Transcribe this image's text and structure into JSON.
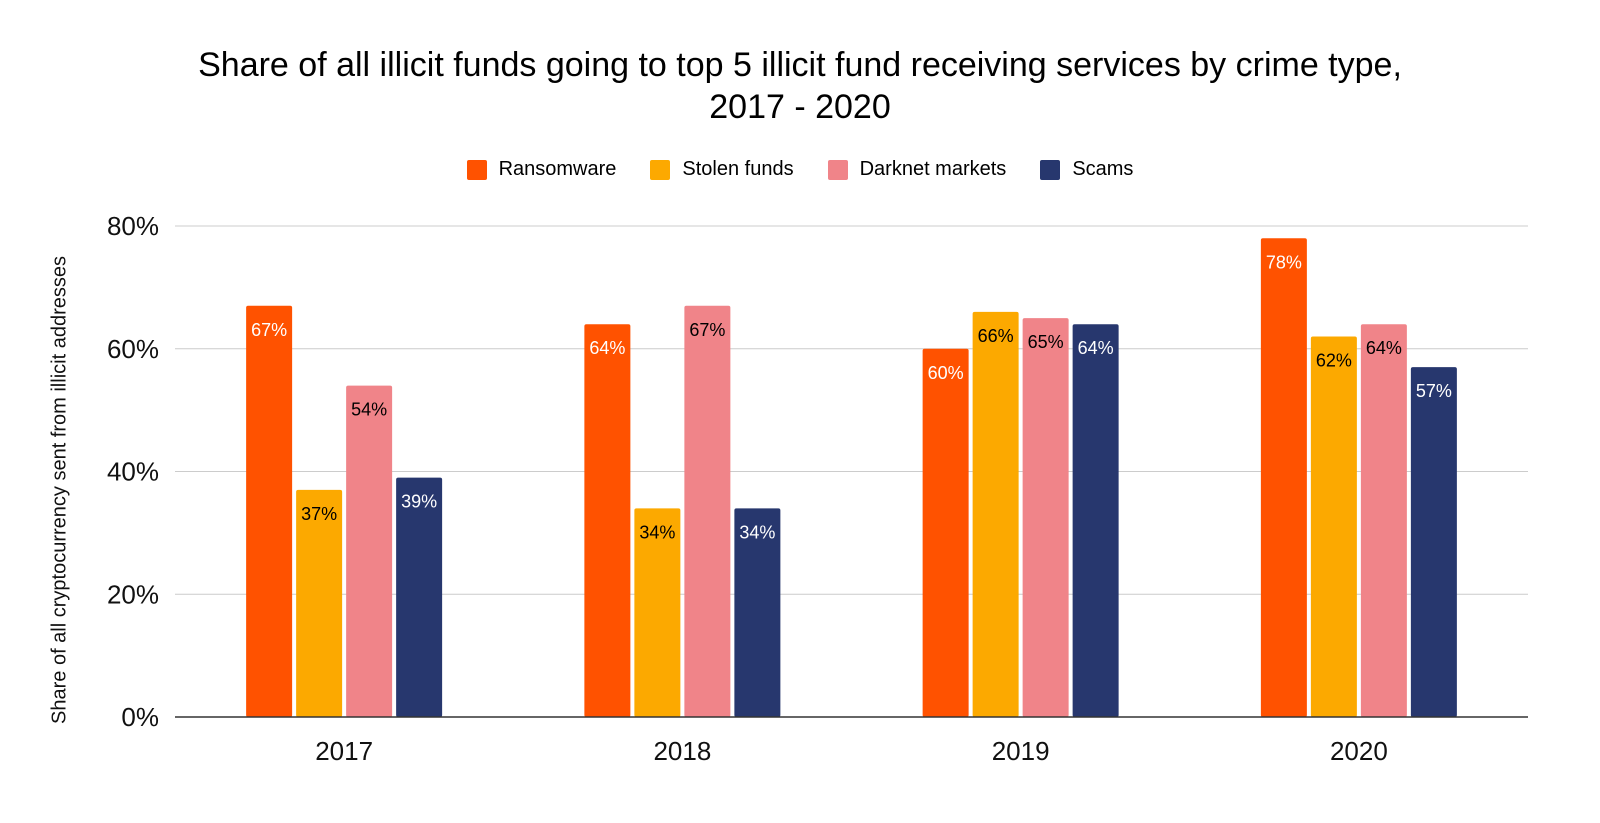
{
  "chart_data": {
    "type": "bar",
    "title_line1": "Share of all illicit funds going to top 5 illicit fund receiving services by crime type,",
    "title_line2": "2017 - 2020",
    "ylabel": "Share of all cryptocurrency sent from illicit addresses",
    "xlabel": "",
    "ylim": [
      0,
      80
    ],
    "yticks": [
      0,
      20,
      40,
      60,
      80
    ],
    "ytick_labels": [
      "0%",
      "20%",
      "40%",
      "60%",
      "80%"
    ],
    "grid": true,
    "legend_position": "top-center",
    "categories": [
      "2017",
      "2018",
      "2019",
      "2020"
    ],
    "series": [
      {
        "name": "Ransomware",
        "color": "#ff5200",
        "label_color": "#ffffff",
        "values": [
          67,
          64,
          60,
          78
        ],
        "labels": [
          "67%",
          "64%",
          "60%",
          "78%"
        ]
      },
      {
        "name": "Stolen funds",
        "color": "#fca900",
        "label_color": "#000000",
        "values": [
          37,
          34,
          66,
          62
        ],
        "labels": [
          "37%",
          "34%",
          "66%",
          "62%"
        ]
      },
      {
        "name": "Darknet markets",
        "color": "#f08489",
        "label_color": "#000000",
        "values": [
          54,
          67,
          65,
          64
        ],
        "labels": [
          "54%",
          "67%",
          "65%",
          "64%"
        ]
      },
      {
        "name": "Scams",
        "color": "#27376e",
        "label_color": "#ffffff",
        "values": [
          39,
          34,
          64,
          57
        ],
        "labels": [
          "39%",
          "34%",
          "64%",
          "57%"
        ]
      }
    ]
  }
}
